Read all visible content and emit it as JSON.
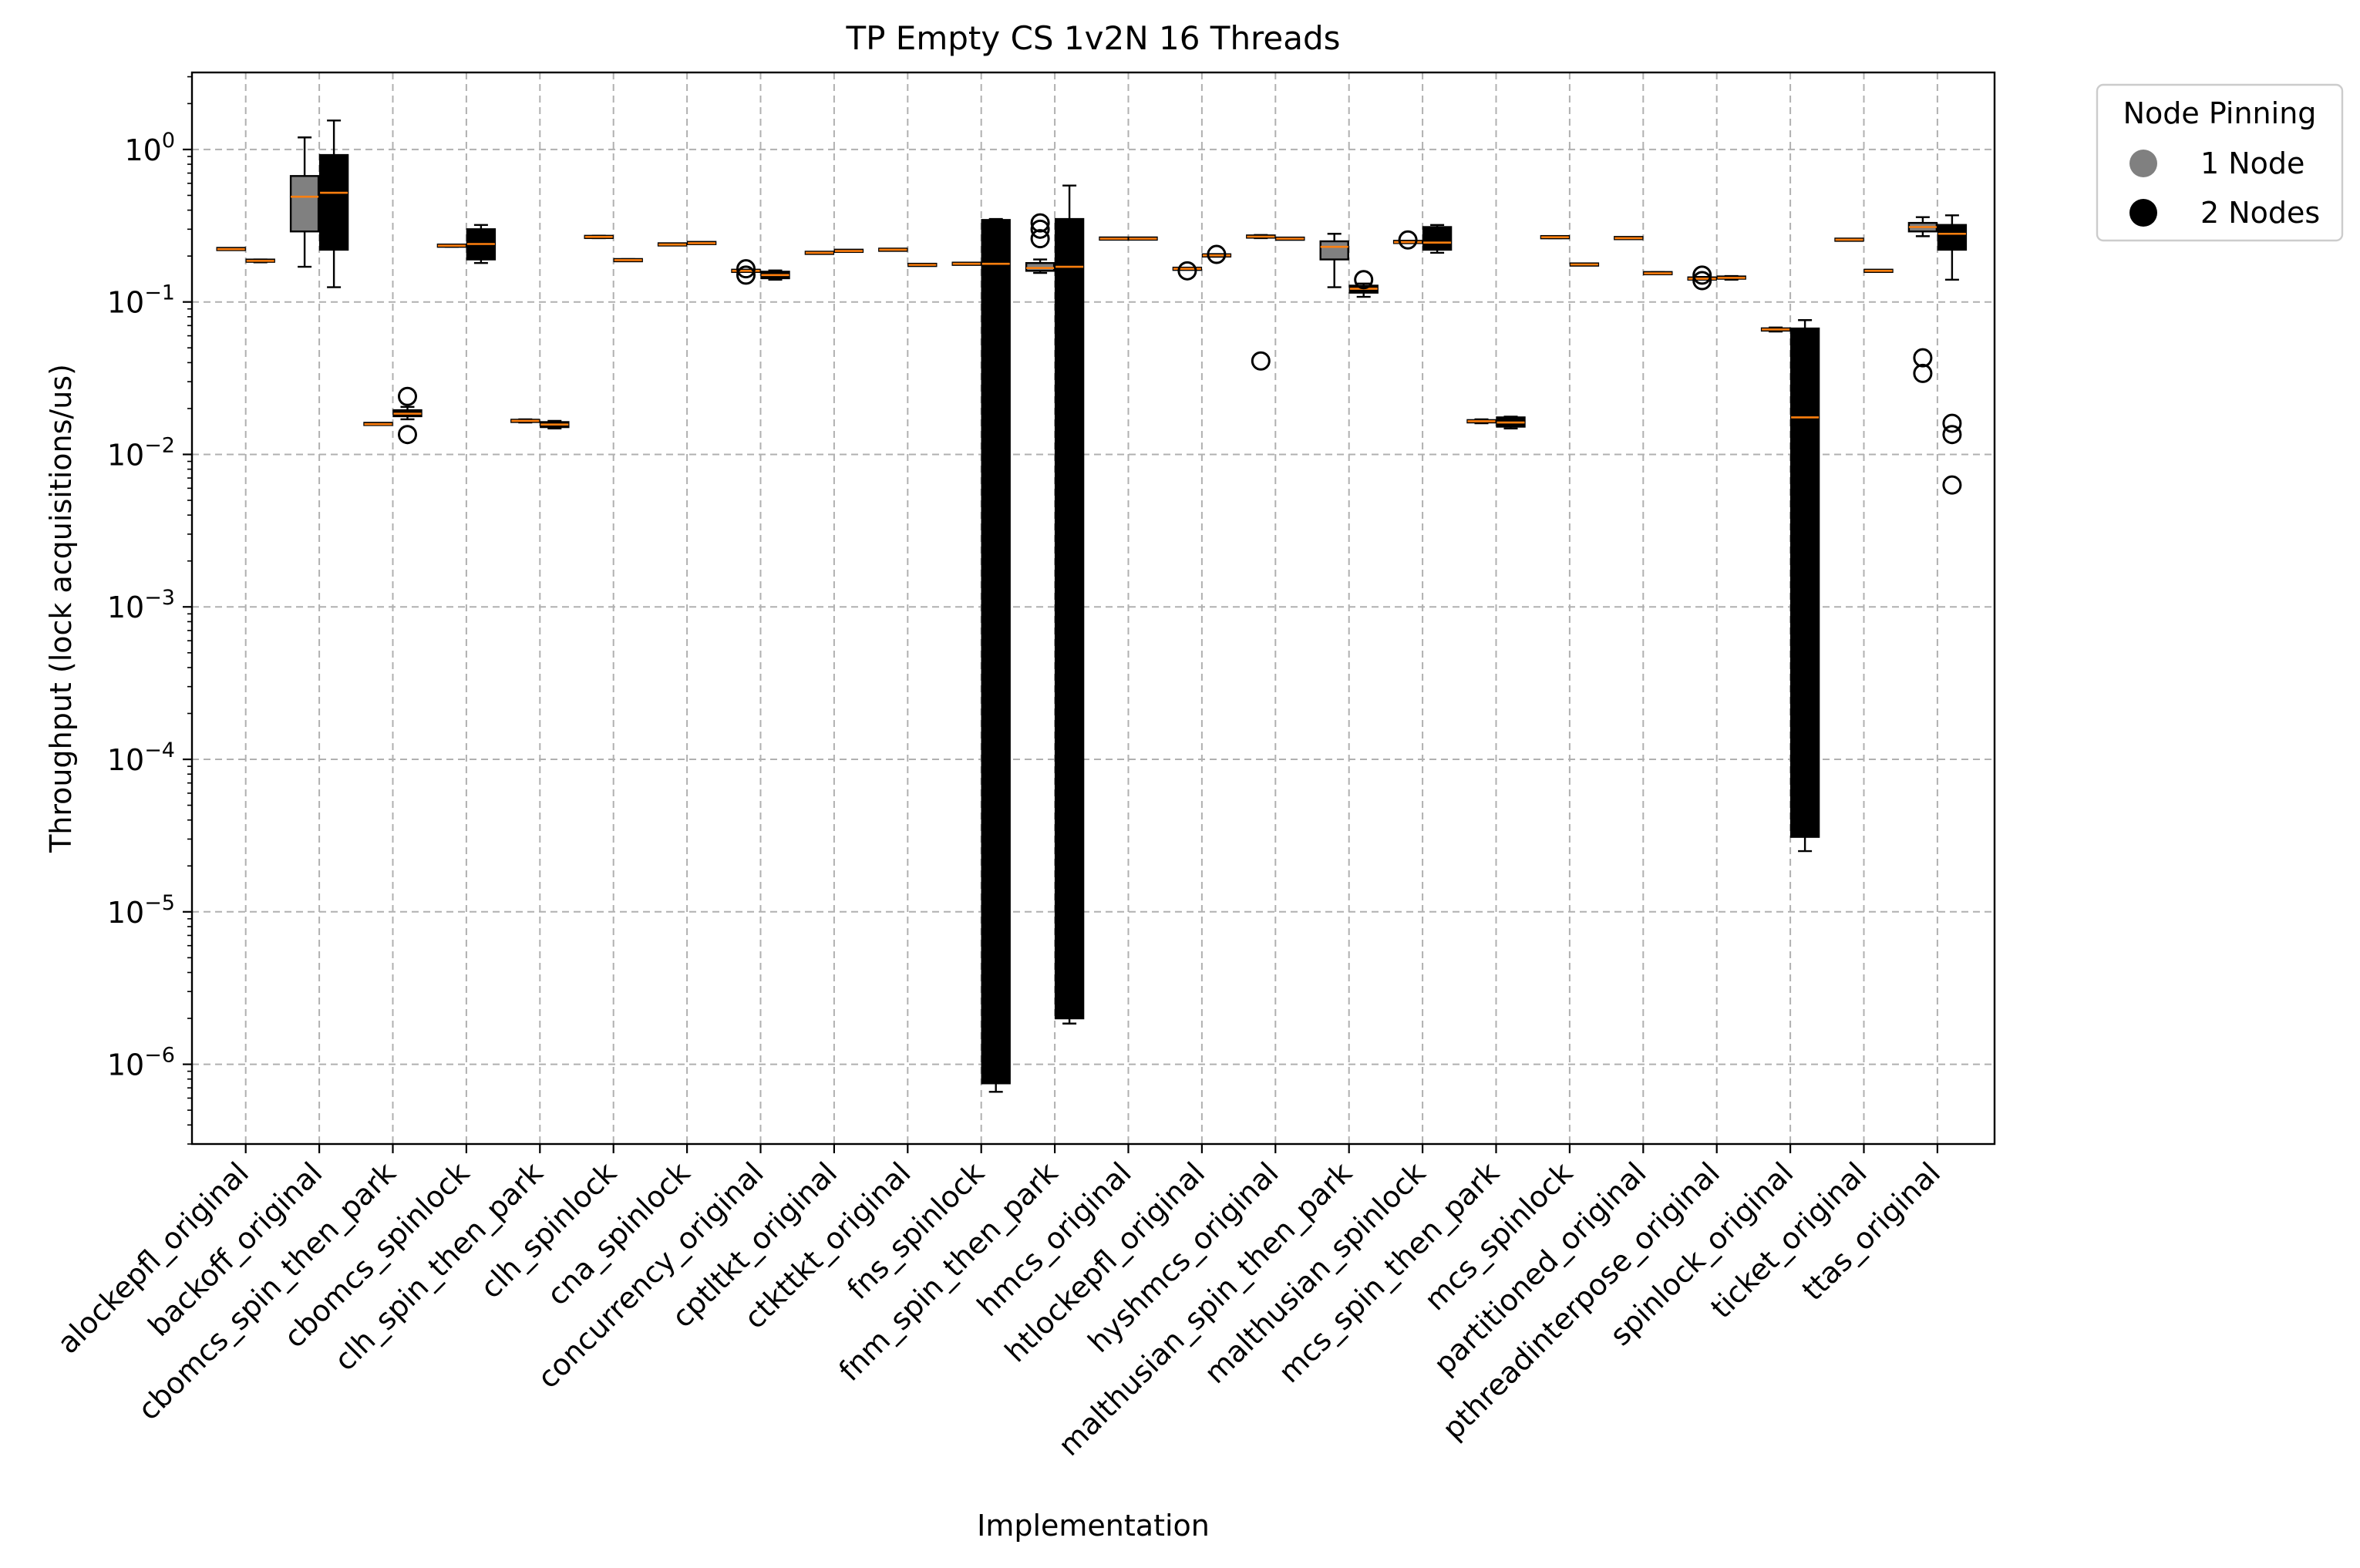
{
  "chart_data": {
    "type": "box",
    "title": "TP Empty CS 1v2N 16 Threads",
    "xlabel": "Implementation",
    "ylabel": "Throughput (lock acquisitions/us)",
    "yscale": "log",
    "ylim": [
      3e-07,
      3.2
    ],
    "y_ticks": [
      {
        "value": 1e-06,
        "base": "10",
        "exp": "−6"
      },
      {
        "value": 1e-05,
        "base": "10",
        "exp": "−5"
      },
      {
        "value": 0.0001,
        "base": "10",
        "exp": "−4"
      },
      {
        "value": 0.001,
        "base": "10",
        "exp": "−3"
      },
      {
        "value": 0.01,
        "base": "10",
        "exp": "−2"
      },
      {
        "value": 0.1,
        "base": "10",
        "exp": "−1"
      },
      {
        "value": 1,
        "base": "10",
        "exp": "0"
      }
    ],
    "grid": true,
    "legend": {
      "title": "Node Pinning",
      "placement": "outside-top-right",
      "entries": [
        {
          "label": "1 Node",
          "color": "#808080"
        },
        {
          "label": "2 Nodes",
          "color": "#000000"
        }
      ]
    },
    "colors": {
      "one_node": "#808080",
      "two_nodes": "#000000",
      "median": "#ff7f0e",
      "grid": "#b0b0b0"
    },
    "categories": [
      "alockepfl_original",
      "backoff_original",
      "cbomcs_spin_then_park",
      "cbomcs_spinlock",
      "clh_spin_then_park",
      "clh_spinlock",
      "cna_spinlock",
      "concurrency_original",
      "cptltkt_original",
      "ctkttkt_original",
      "fns_spinlock",
      "fnm_spin_then_park",
      "hmcs_original",
      "htlockepfl_original",
      "hyshmcs_original",
      "malthusian_spin_then_park",
      "malthusian_spinlock",
      "mcs_spin_then_park",
      "mcs_spinlock",
      "partitioned_original",
      "pthreadinterpose_original",
      "spinlock_original",
      "ticket_original",
      "ttas_original"
    ],
    "series": [
      {
        "name": "1 Node",
        "boxes": [
          {
            "whislo": 0.22,
            "q1": 0.221,
            "med": 0.222,
            "q3": 0.224,
            "whishi": 0.225,
            "fliers": []
          },
          {
            "whislo": 0.17,
            "q1": 0.29,
            "med": 0.49,
            "q3": 0.67,
            "whishi": 1.2,
            "fliers": []
          },
          {
            "whislo": 0.0157,
            "q1": 0.0158,
            "med": 0.0158,
            "q3": 0.0159,
            "whishi": 0.016,
            "fliers": []
          },
          {
            "whislo": 0.23,
            "q1": 0.232,
            "med": 0.234,
            "q3": 0.236,
            "whishi": 0.238,
            "fliers": []
          },
          {
            "whislo": 0.0162,
            "q1": 0.0164,
            "med": 0.0166,
            "q3": 0.0168,
            "whishi": 0.017,
            "fliers": []
          },
          {
            "whislo": 0.262,
            "q1": 0.264,
            "med": 0.267,
            "q3": 0.27,
            "whishi": 0.272,
            "fliers": []
          },
          {
            "whislo": 0.236,
            "q1": 0.237,
            "med": 0.238,
            "q3": 0.24,
            "whishi": 0.241,
            "fliers": []
          },
          {
            "whislo": 0.158,
            "q1": 0.159,
            "med": 0.16,
            "q3": 0.161,
            "whishi": 0.162,
            "fliers": [
              0.15,
              0.165
            ]
          },
          {
            "whislo": 0.208,
            "q1": 0.209,
            "med": 0.21,
            "q3": 0.211,
            "whishi": 0.212,
            "fliers": []
          },
          {
            "whislo": 0.218,
            "q1": 0.219,
            "med": 0.22,
            "q3": 0.221,
            "whishi": 0.222,
            "fliers": []
          },
          {
            "whislo": 0.176,
            "q1": 0.177,
            "med": 0.178,
            "q3": 0.179,
            "whishi": 0.18,
            "fliers": []
          },
          {
            "whislo": 0.155,
            "q1": 0.16,
            "med": 0.167,
            "q3": 0.18,
            "whishi": 0.19,
            "fliers": [
              0.26,
              0.3,
              0.33
            ]
          },
          {
            "whislo": 0.258,
            "q1": 0.259,
            "med": 0.26,
            "q3": 0.262,
            "whishi": 0.263,
            "fliers": []
          },
          {
            "whislo": 0.163,
            "q1": 0.164,
            "med": 0.165,
            "q3": 0.166,
            "whishi": 0.167,
            "fliers": [
              0.16
            ]
          },
          {
            "whislo": 0.262,
            "q1": 0.265,
            "med": 0.268,
            "q3": 0.272,
            "whishi": 0.275,
            "fliers": [
              0.041
            ]
          },
          {
            "whislo": 0.125,
            "q1": 0.19,
            "med": 0.23,
            "q3": 0.25,
            "whishi": 0.28,
            "fliers": []
          },
          {
            "whislo": 0.243,
            "q1": 0.245,
            "med": 0.247,
            "q3": 0.25,
            "whishi": 0.252,
            "fliers": [
              0.255
            ]
          },
          {
            "whislo": 0.016,
            "q1": 0.0162,
            "med": 0.0165,
            "q3": 0.0168,
            "whishi": 0.017,
            "fliers": []
          },
          {
            "whislo": 0.262,
            "q1": 0.264,
            "med": 0.266,
            "q3": 0.268,
            "whishi": 0.27,
            "fliers": []
          },
          {
            "whislo": 0.26,
            "q1": 0.261,
            "med": 0.262,
            "q3": 0.264,
            "whishi": 0.265,
            "fliers": []
          },
          {
            "whislo": 0.14,
            "q1": 0.141,
            "med": 0.142,
            "q3": 0.144,
            "whishi": 0.146,
            "fliers": [
              0.138,
              0.15
            ]
          },
          {
            "whislo": 0.064,
            "q1": 0.065,
            "med": 0.066,
            "q3": 0.067,
            "whishi": 0.068,
            "fliers": []
          },
          {
            "whislo": 0.254,
            "q1": 0.255,
            "med": 0.256,
            "q3": 0.257,
            "whishi": 0.258,
            "fliers": []
          },
          {
            "whislo": 0.27,
            "q1": 0.29,
            "med": 0.31,
            "q3": 0.33,
            "whishi": 0.36,
            "fliers": [
              0.043,
              0.034
            ]
          }
        ]
      },
      {
        "name": "2 Nodes",
        "boxes": [
          {
            "whislo": 0.182,
            "q1": 0.184,
            "med": 0.186,
            "q3": 0.189,
            "whishi": 0.19,
            "fliers": []
          },
          {
            "whislo": 0.125,
            "q1": 0.22,
            "med": 0.52,
            "q3": 0.92,
            "whishi": 1.55,
            "fliers": []
          },
          {
            "whislo": 0.017,
            "q1": 0.0178,
            "med": 0.0185,
            "q3": 0.0195,
            "whishi": 0.0205,
            "fliers": [
              0.024,
              0.0135
            ]
          },
          {
            "whislo": 0.18,
            "q1": 0.19,
            "med": 0.24,
            "q3": 0.3,
            "whishi": 0.32,
            "fliers": []
          },
          {
            "whislo": 0.0148,
            "q1": 0.0151,
            "med": 0.0157,
            "q3": 0.0163,
            "whishi": 0.0166,
            "fliers": []
          },
          {
            "whislo": 0.185,
            "q1": 0.186,
            "med": 0.188,
            "q3": 0.19,
            "whishi": 0.191,
            "fliers": []
          },
          {
            "whislo": 0.241,
            "q1": 0.242,
            "med": 0.243,
            "q3": 0.245,
            "whishi": 0.246,
            "fliers": []
          },
          {
            "whislo": 0.14,
            "q1": 0.143,
            "med": 0.15,
            "q3": 0.158,
            "whishi": 0.161,
            "fliers": []
          },
          {
            "whislo": 0.214,
            "q1": 0.215,
            "med": 0.216,
            "q3": 0.218,
            "whishi": 0.219,
            "fliers": []
          },
          {
            "whislo": 0.173,
            "q1": 0.174,
            "med": 0.175,
            "q3": 0.176,
            "whishi": 0.177,
            "fliers": []
          },
          {
            "whislo": 6.6e-07,
            "q1": 7.5e-07,
            "med": 0.178,
            "q3": 0.345,
            "whishi": 0.35,
            "fliers": []
          },
          {
            "whislo": 1.85e-06,
            "q1": 2e-06,
            "med": 0.17,
            "q3": 0.35,
            "whishi": 0.58,
            "fliers": []
          },
          {
            "whislo": 0.258,
            "q1": 0.259,
            "med": 0.26,
            "q3": 0.262,
            "whishi": 0.263,
            "fliers": []
          },
          {
            "whislo": 0.198,
            "q1": 0.2,
            "med": 0.202,
            "q3": 0.204,
            "whishi": 0.206,
            "fliers": [
              0.205
            ]
          },
          {
            "whislo": 0.258,
            "q1": 0.259,
            "med": 0.26,
            "q3": 0.261,
            "whishi": 0.262,
            "fliers": []
          },
          {
            "whislo": 0.108,
            "q1": 0.115,
            "med": 0.122,
            "q3": 0.128,
            "whishi": 0.132,
            "fliers": [
              0.14
            ]
          },
          {
            "whislo": 0.21,
            "q1": 0.22,
            "med": 0.245,
            "q3": 0.31,
            "whishi": 0.32,
            "fliers": []
          },
          {
            "whislo": 0.0148,
            "q1": 0.0152,
            "med": 0.0162,
            "q3": 0.0175,
            "whishi": 0.0177,
            "fliers": []
          },
          {
            "whislo": 0.174,
            "q1": 0.175,
            "med": 0.176,
            "q3": 0.177,
            "whishi": 0.178,
            "fliers": []
          },
          {
            "whislo": 0.152,
            "q1": 0.153,
            "med": 0.154,
            "q3": 0.156,
            "whishi": 0.157,
            "fliers": []
          },
          {
            "whislo": 0.14,
            "q1": 0.142,
            "med": 0.144,
            "q3": 0.147,
            "whishi": 0.148,
            "fliers": []
          },
          {
            "whislo": 2.5e-05,
            "q1": 3.1e-05,
            "med": 0.0175,
            "q3": 0.067,
            "whishi": 0.076,
            "fliers": []
          },
          {
            "whislo": 0.158,
            "q1": 0.159,
            "med": 0.16,
            "q3": 0.161,
            "whishi": 0.162,
            "fliers": []
          },
          {
            "whislo": 0.14,
            "q1": 0.22,
            "med": 0.28,
            "q3": 0.32,
            "whishi": 0.37,
            "fliers": [
              0.016,
              0.0135,
              0.0063
            ]
          }
        ]
      }
    ]
  }
}
